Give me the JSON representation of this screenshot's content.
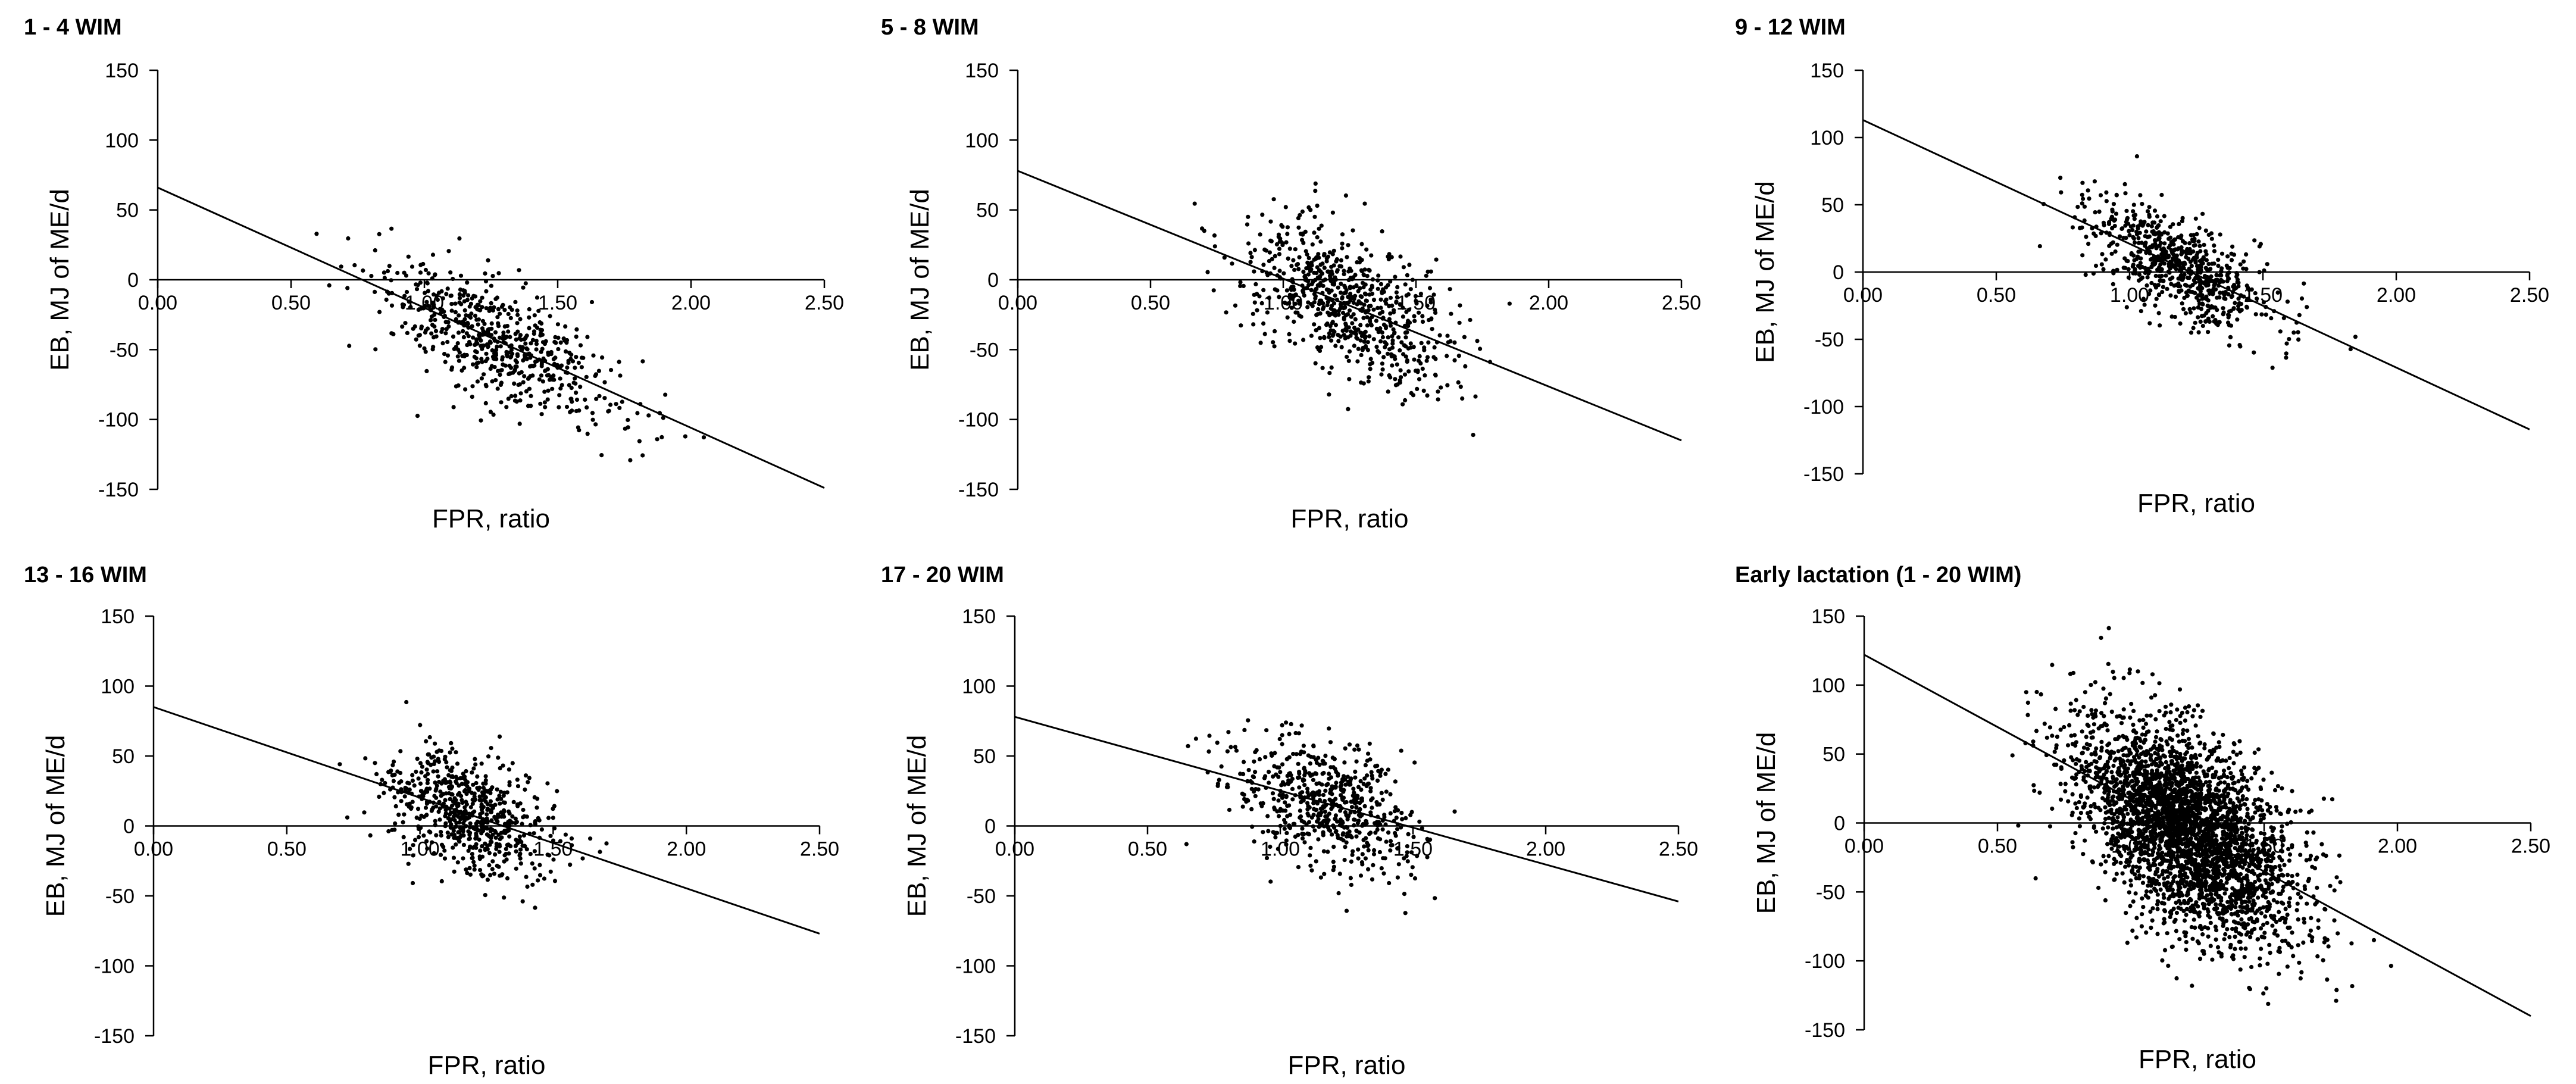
{
  "colors": {
    "points": "#000000",
    "axes": "#000000",
    "background": "#ffffff"
  },
  "chart_data": [
    {
      "type": "scatter",
      "title": "1 - 4 WIM",
      "xlabel": "FPR, ratio",
      "ylabel": "EB, MJ of ME/d",
      "xlim": [
        0,
        2.5
      ],
      "ylim": [
        -150,
        150
      ],
      "xticks": [
        "0.00",
        "0.50",
        "1.00",
        "1.50",
        "2.00",
        "2.50"
      ],
      "yticks": [
        "150",
        "100",
        "50",
        "0",
        "-50",
        "-100",
        "-150"
      ],
      "grid": false,
      "legend": "none",
      "trendline": {
        "x": [
          0,
          2.5
        ],
        "y": [
          66,
          -149
        ]
      },
      "scatter": {
        "n": 600,
        "x_center": 1.28,
        "x_spread": 0.22,
        "y_resid_spread": 22
      }
    },
    {
      "type": "scatter",
      "title": "5 - 8 WIM",
      "xlabel": "FPR, ratio",
      "ylabel": "EB, MJ of ME/d",
      "xlim": [
        0,
        2.5
      ],
      "ylim": [
        -150,
        150
      ],
      "xticks": [
        "0.00",
        "0.50",
        "1.00",
        "1.50",
        "2.00",
        "2.50"
      ],
      "yticks": [
        "150",
        "100",
        "50",
        "0",
        "-50",
        "-100",
        "-150"
      ],
      "grid": false,
      "legend": "none",
      "trendline": {
        "x": [
          0,
          2.5
        ],
        "y": [
          78,
          -115
        ]
      },
      "scatter": {
        "n": 700,
        "x_center": 1.25,
        "x_spread": 0.2,
        "y_resid_spread": 25
      }
    },
    {
      "type": "scatter",
      "title": "9 - 12 WIM",
      "xlabel": "FPR, ratio",
      "ylabel": "EB, MJ of ME/d",
      "xlim": [
        0,
        2.5
      ],
      "ylim": [
        -150,
        150
      ],
      "xticks": [
        "0.00",
        "0.50",
        "1.00",
        "1.50",
        "2.00",
        "2.50"
      ],
      "yticks": [
        "150",
        "100",
        "50",
        "0",
        "-50",
        "-100",
        "-150"
      ],
      "grid": false,
      "legend": "none",
      "trendline": {
        "x": [
          0,
          2.5
        ],
        "y": [
          113,
          -117
        ]
      },
      "scatter": {
        "n": 700,
        "x_center": 1.18,
        "x_spread": 0.17,
        "y_resid_spread": 18
      }
    },
    {
      "type": "scatter",
      "title": "13 - 16 WIM",
      "xlabel": "FPR, ratio",
      "ylabel": "EB, MJ of ME/d",
      "xlim": [
        0,
        2.5
      ],
      "ylim": [
        -150,
        150
      ],
      "xticks": [
        "0.00",
        "0.50",
        "1.00",
        "1.50",
        "2.00",
        "2.50"
      ],
      "yticks": [
        "150",
        "100",
        "50",
        "0",
        "-50",
        "-100",
        "-150"
      ],
      "grid": false,
      "legend": "none",
      "trendline": {
        "x": [
          0,
          2.5
        ],
        "y": [
          85,
          -77
        ]
      },
      "scatter": {
        "n": 650,
        "x_center": 1.18,
        "x_spread": 0.16,
        "y_resid_spread": 20
      }
    },
    {
      "type": "scatter",
      "title": "17 - 20 WIM",
      "xlabel": "FPR, ratio",
      "ylabel": "EB, MJ of ME/d",
      "xlim": [
        0,
        2.5
      ],
      "ylim": [
        -150,
        150
      ],
      "xticks": [
        "0.00",
        "0.50",
        "1.00",
        "1.50",
        "2.00",
        "2.50"
      ],
      "yticks": [
        "150",
        "100",
        "50",
        "0",
        "-50",
        "-100",
        "-150"
      ],
      "grid": false,
      "legend": "none",
      "trendline": {
        "x": [
          0,
          2.5
        ],
        "y": [
          78,
          -54
        ]
      },
      "scatter": {
        "n": 600,
        "x_center": 1.17,
        "x_spread": 0.17,
        "y_resid_spread": 22
      }
    },
    {
      "type": "scatter",
      "title": "Early lactation (1 - 20 WIM)",
      "xlabel": "FPR, ratio",
      "ylabel": "EB, MJ of ME/d",
      "xlim": [
        0,
        2.5
      ],
      "ylim": [
        -150,
        150
      ],
      "xticks": [
        "0.00",
        "0.50",
        "1.00",
        "1.50",
        "2.00",
        "2.50"
      ],
      "yticks": [
        "150",
        "100",
        "50",
        "0",
        "-50",
        "-100",
        "-150"
      ],
      "grid": false,
      "legend": "none",
      "trendline": {
        "x": [
          0,
          2.5
        ],
        "y": [
          122,
          -140
        ]
      },
      "scatter": {
        "n": 3200,
        "x_center": 1.22,
        "x_spread": 0.2,
        "y_resid_spread": 34
      }
    }
  ]
}
